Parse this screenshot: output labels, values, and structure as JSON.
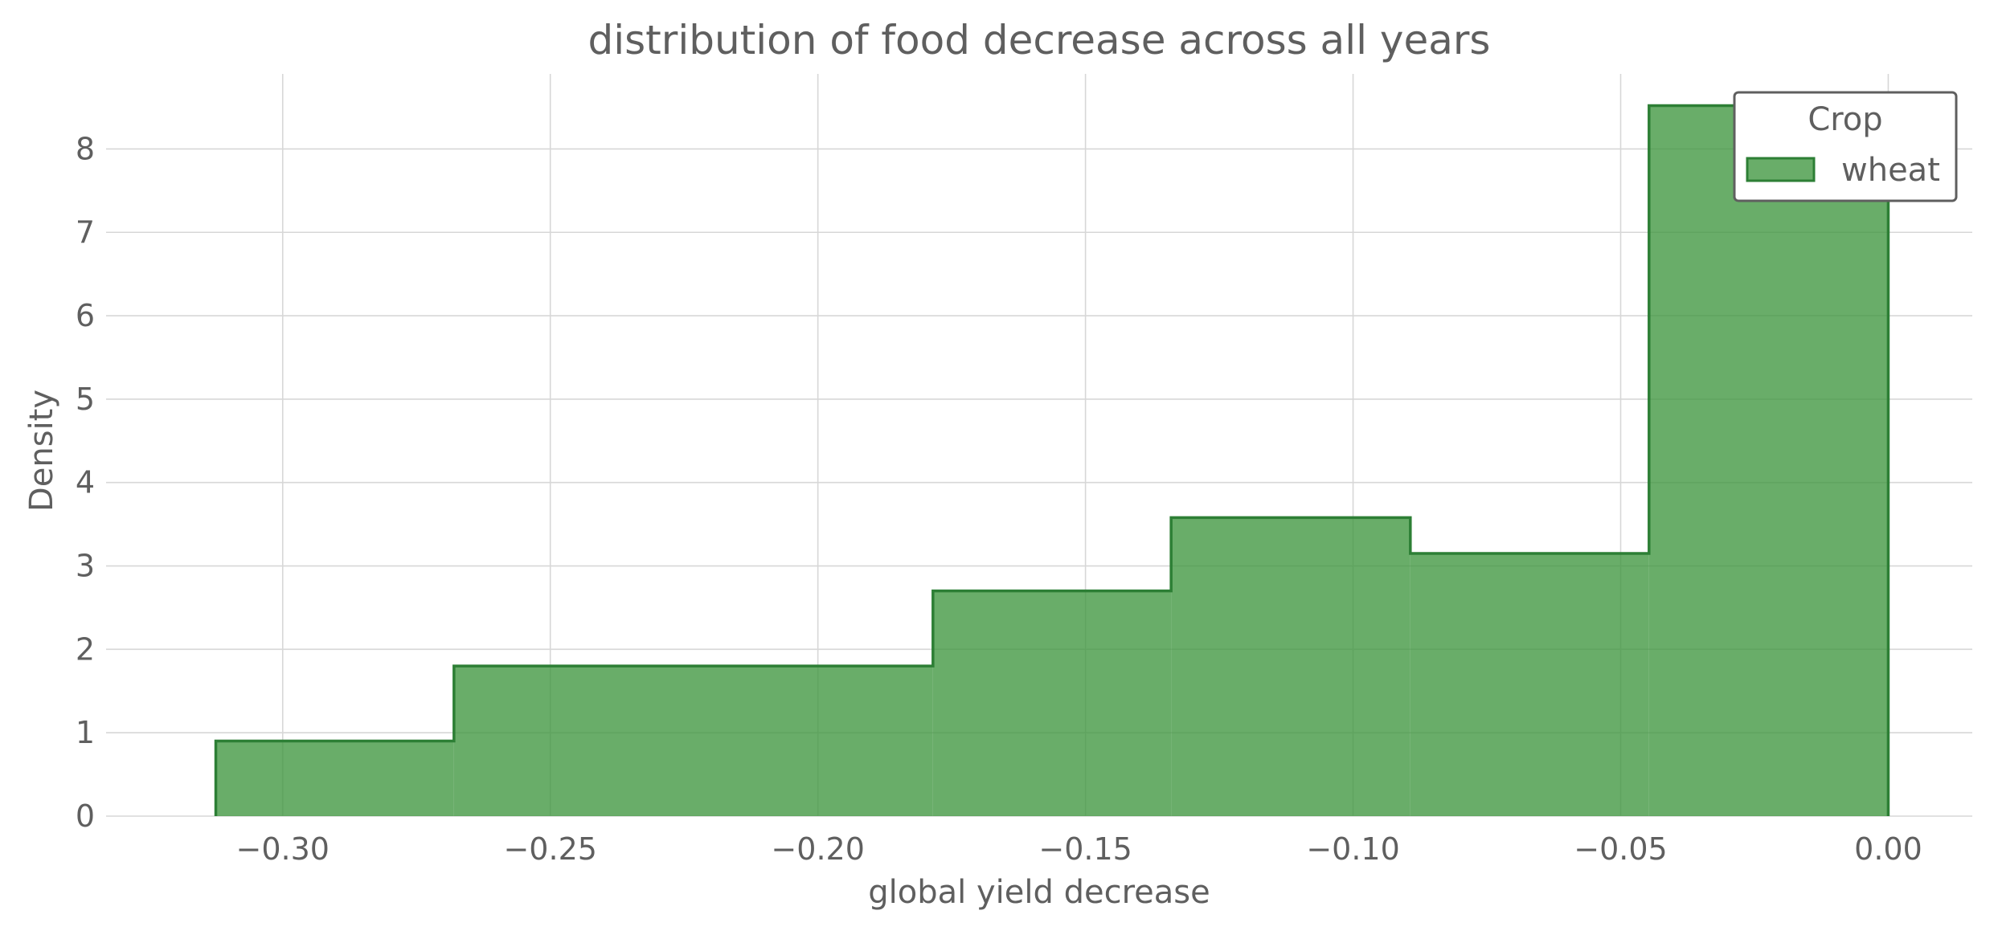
{
  "chart_data": {
    "type": "bar",
    "title": "distribution of food decrease across all years",
    "xlabel": "global yield decrease",
    "ylabel": "Density",
    "xlim": [
      -0.333,
      0.0157
    ],
    "ylim": [
      0,
      8.9
    ],
    "x_ticks": [
      -0.3,
      -0.25,
      -0.2,
      -0.15,
      -0.1,
      -0.05,
      0.0
    ],
    "x_tick_labels": [
      "−0.30",
      "−0.25",
      "−0.20",
      "−0.15",
      "−0.10",
      "−0.05",
      "0.00"
    ],
    "y_ticks": [
      0,
      1,
      2,
      3,
      4,
      5,
      6,
      7,
      8
    ],
    "y_tick_labels": [
      "0",
      "1",
      "2",
      "3",
      "4",
      "5",
      "6",
      "7",
      "8"
    ],
    "grid": true,
    "bin_edges": [
      -0.3125,
      -0.268,
      -0.1785,
      -0.134,
      -0.0893,
      -0.0447,
      0.0
    ],
    "series": [
      {
        "name": "wheat",
        "values": [
          0.9,
          1.8,
          2.7,
          3.58,
          3.15,
          8.52
        ]
      }
    ],
    "legend": {
      "title": "Crop",
      "placement": "top-right"
    },
    "colors": {
      "fill": "#3f963f",
      "stroke": "#2d7f35"
    }
  }
}
